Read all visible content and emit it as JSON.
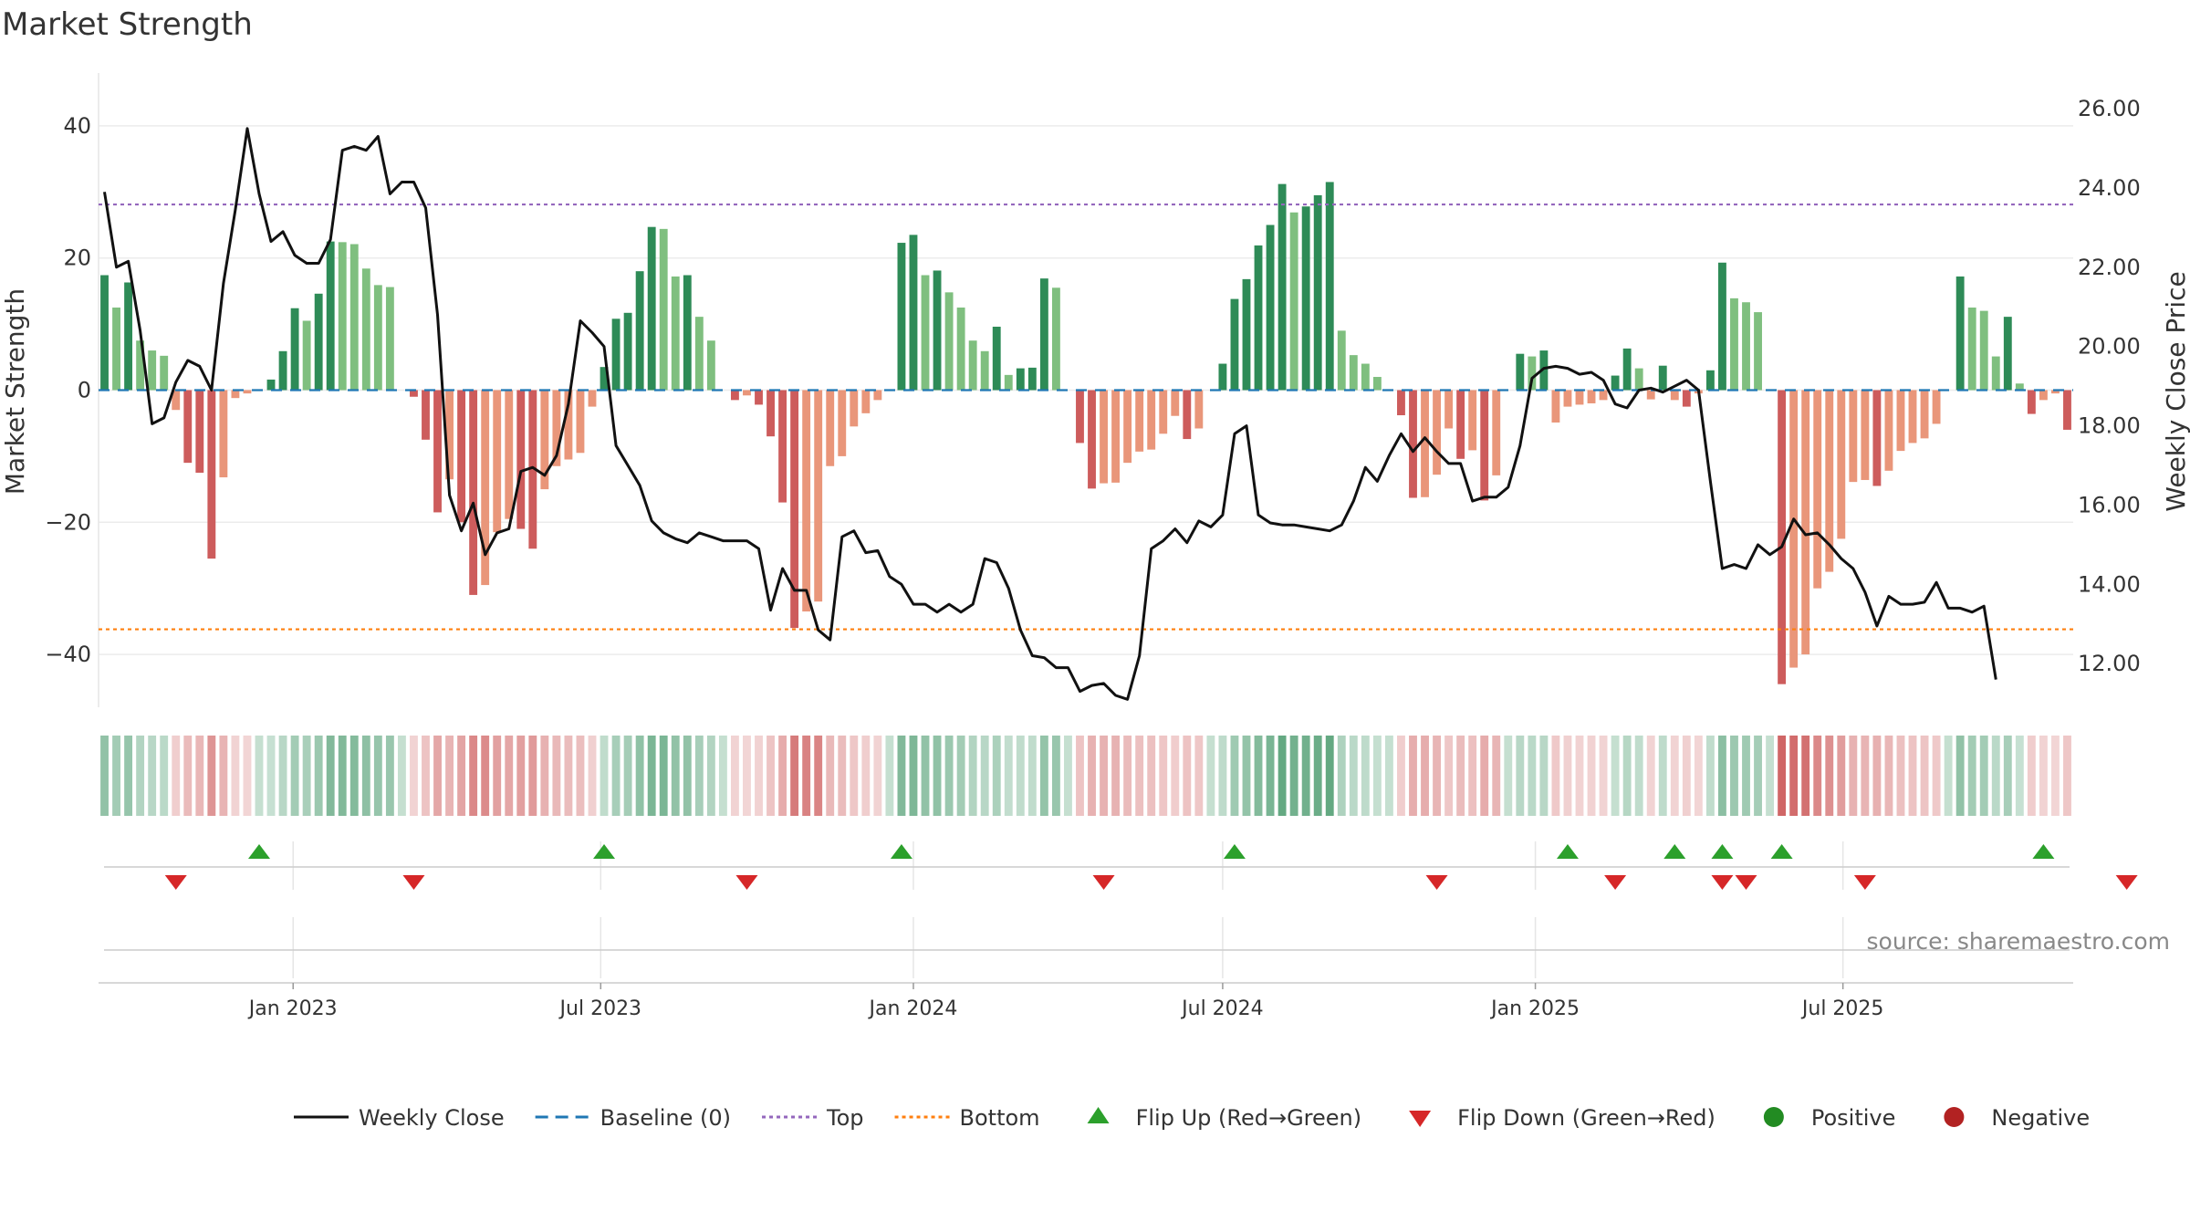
{
  "title": "Market Strength",
  "source": "source: sharemaestro.com",
  "colors": {
    "green_dark": "#2e8b57",
    "green_light": "#7fbf7f",
    "red_dark": "#cd5c5c",
    "red_light": "#e9967a",
    "price_line": "#111111",
    "baseline": "#1f77b4",
    "top_line": "#9467bd",
    "bottom_line": "#ff7f0e",
    "flip_up": "#2ca02c",
    "flip_down": "#d62728",
    "positive": "#228b22",
    "negative": "#b22222"
  },
  "legend": [
    {
      "key": "weekly_close",
      "label": "Weekly Close",
      "icon": "line-solid"
    },
    {
      "key": "baseline",
      "label": "Baseline (0)",
      "icon": "line-dashed"
    },
    {
      "key": "top",
      "label": "Top",
      "icon": "line-dotted"
    },
    {
      "key": "bottom",
      "label": "Bottom",
      "icon": "line-dotted"
    },
    {
      "key": "flip_up",
      "label": "Flip Up (Red→Green)",
      "icon": "triangle-up-icon"
    },
    {
      "key": "flip_down",
      "label": "Flip Down (Green→Red)",
      "icon": "triangle-down-icon"
    },
    {
      "key": "positive",
      "label": "Positive",
      "icon": "circle-icon"
    },
    {
      "key": "negative",
      "label": "Negative",
      "icon": "circle-icon"
    }
  ],
  "chart_data": {
    "type": "bar",
    "x_start": "2022-09-12",
    "interval_days": 7,
    "xlabel": "",
    "ylabel": "Market Strength",
    "ylabel_right": "Weekly Close Price",
    "ylim": [
      -48,
      48
    ],
    "ylim_right": [
      10.9,
      26.9
    ],
    "yticks_left": [
      "40",
      "20",
      "0",
      "−20",
      "−40"
    ],
    "yticks_left_values": [
      40,
      20,
      0,
      -20,
      -40
    ],
    "yticks_right": [
      "26.00",
      "24.00",
      "22.00",
      "20.00",
      "18.00",
      "16.00",
      "14.00",
      "12.00"
    ],
    "yticks_right_values": [
      26,
      24,
      22,
      20,
      18,
      16,
      14,
      12
    ],
    "xticks": [
      "Jan 2023",
      "Jul 2023",
      "Jan 2024",
      "Jul 2024",
      "Jan 2025",
      "Jul 2025"
    ],
    "xticks_dates": [
      "2023-01-01",
      "2023-07-01",
      "2024-01-01",
      "2024-07-01",
      "2025-01-01",
      "2025-07-01"
    ],
    "top_threshold": 28.1,
    "bottom_threshold": -36.2,
    "series": [
      {
        "name": "Market Strength",
        "values": [
          17.4,
          12.5,
          16.3,
          7.5,
          6,
          5.2,
          -3,
          -11,
          -12.5,
          -25.5,
          -13.2,
          -1.2,
          -0.5,
          0,
          1.6,
          5.9,
          12.4,
          10.5,
          14.6,
          22.5,
          22.4,
          22.1,
          18.4,
          15.9,
          15.6,
          0,
          -1,
          -7.5,
          -18.5,
          -13.5,
          -20,
          -31,
          -29.5,
          -21.5,
          -19.5,
          -21,
          -24,
          -15,
          -11.5,
          -10.5,
          -9.5,
          -2.5,
          3.5,
          10.8,
          11.7,
          18,
          24.7,
          24.4,
          17.2,
          17.4,
          11.1,
          7.5,
          0,
          -1.5,
          -0.8,
          -2.2,
          -7,
          -17,
          -36,
          -33.5,
          -32,
          -11.5,
          -10,
          -5.5,
          -3.5,
          -1.5,
          0,
          22.3,
          23.5,
          17.4,
          18.1,
          14.8,
          12.5,
          7.5,
          5.9,
          9.6,
          2.3,
          3.3,
          3.4,
          16.9,
          15.5,
          0,
          -8,
          -14.9,
          -14.1,
          -14,
          -11,
          -9.3,
          -9,
          -6.6,
          -3.9,
          -7.4,
          -5.8,
          0,
          4,
          13.8,
          16.8,
          21.9,
          25,
          31.2,
          26.9,
          27.8,
          29.5,
          31.5,
          9,
          5.3,
          4,
          2,
          0,
          -3.8,
          -16.3,
          -16.2,
          -12.8,
          -5.8,
          -10.4,
          -9.1,
          -16.7,
          -12.9,
          0,
          5.5,
          5.1,
          6,
          -4.9,
          -2.5,
          -2.2,
          -2,
          -1.5,
          2.2,
          6.3,
          3.3,
          -1.4,
          3.7,
          -1.5,
          -2.5,
          -0.5,
          3,
          19.3,
          13.9,
          13.3,
          11.8,
          0,
          -44.5,
          -42,
          -40,
          -30,
          -27.5,
          -22.5,
          -13.9,
          -13.6,
          -14.5,
          -12.2,
          -9.2,
          -8,
          -7.3,
          -5.1,
          0,
          17.2,
          12.5,
          12,
          5.1,
          11.1,
          1,
          -3.6,
          -1.5,
          -0.5,
          -6
        ]
      },
      {
        "name": "Weekly Close",
        "values": [
          23.9,
          22,
          22.15,
          20.4,
          18.05,
          18.2,
          19.1,
          19.65,
          19.5,
          18.9,
          21.6,
          23.45,
          25.5,
          23.85,
          22.65,
          22.9,
          22.3,
          22.1,
          22.1,
          22.7,
          24.95,
          25.05,
          24.95,
          25.3,
          23.85,
          24.15,
          24.15,
          23.5,
          20.8,
          16.25,
          15.35,
          16.05,
          14.75,
          15.3,
          15.4,
          16.85,
          16.95,
          16.75,
          17.25,
          18.55,
          20.65,
          20.35,
          20,
          17.5,
          17,
          16.5,
          15.6,
          15.3,
          15.15,
          15.05,
          15.3,
          15.2,
          15.1,
          15.1,
          15.1,
          14.9,
          13.35,
          14.4,
          13.85,
          13.85,
          12.85,
          12.6,
          15.2,
          15.35,
          14.8,
          14.85,
          14.2,
          14,
          13.5,
          13.5,
          13.3,
          13.5,
          13.3,
          13.5,
          14.65,
          14.55,
          13.9,
          12.85,
          12.2,
          12.15,
          11.9,
          11.9,
          11.3,
          11.45,
          11.5,
          11.2,
          11.1,
          12.2,
          14.9,
          15.1,
          15.4,
          15.05,
          15.6,
          15.45,
          15.75,
          17.8,
          18,
          15.75,
          15.55,
          15.5,
          15.5,
          15.45,
          15.4,
          15.35,
          15.5,
          16.1,
          16.95,
          16.6,
          17.25,
          17.8,
          17.35,
          17.7,
          17.35,
          17.05,
          17.05,
          16.1,
          16.2,
          16.2,
          16.45,
          17.5,
          19.2,
          19.45,
          19.5,
          19.45,
          19.3,
          19.35,
          19.15,
          18.55,
          18.45,
          18.9,
          18.95,
          18.85,
          19,
          19.15,
          18.9,
          16.6,
          14.4,
          14.5,
          14.4,
          15,
          14.75,
          14.95,
          15.65,
          15.25,
          15.3,
          15,
          14.65,
          14.4,
          13.8,
          12.95,
          13.7,
          13.5,
          13.5,
          13.55,
          14.05,
          13.4,
          13.4,
          13.3,
          13.45,
          11.6
        ]
      }
    ],
    "flip_up_weeks": [
      13,
      42,
      67,
      95,
      123,
      132,
      136,
      141,
      163
    ],
    "flip_down_weeks": [
      6,
      26,
      54,
      84,
      112,
      127,
      136,
      138,
      148,
      170
    ]
  }
}
